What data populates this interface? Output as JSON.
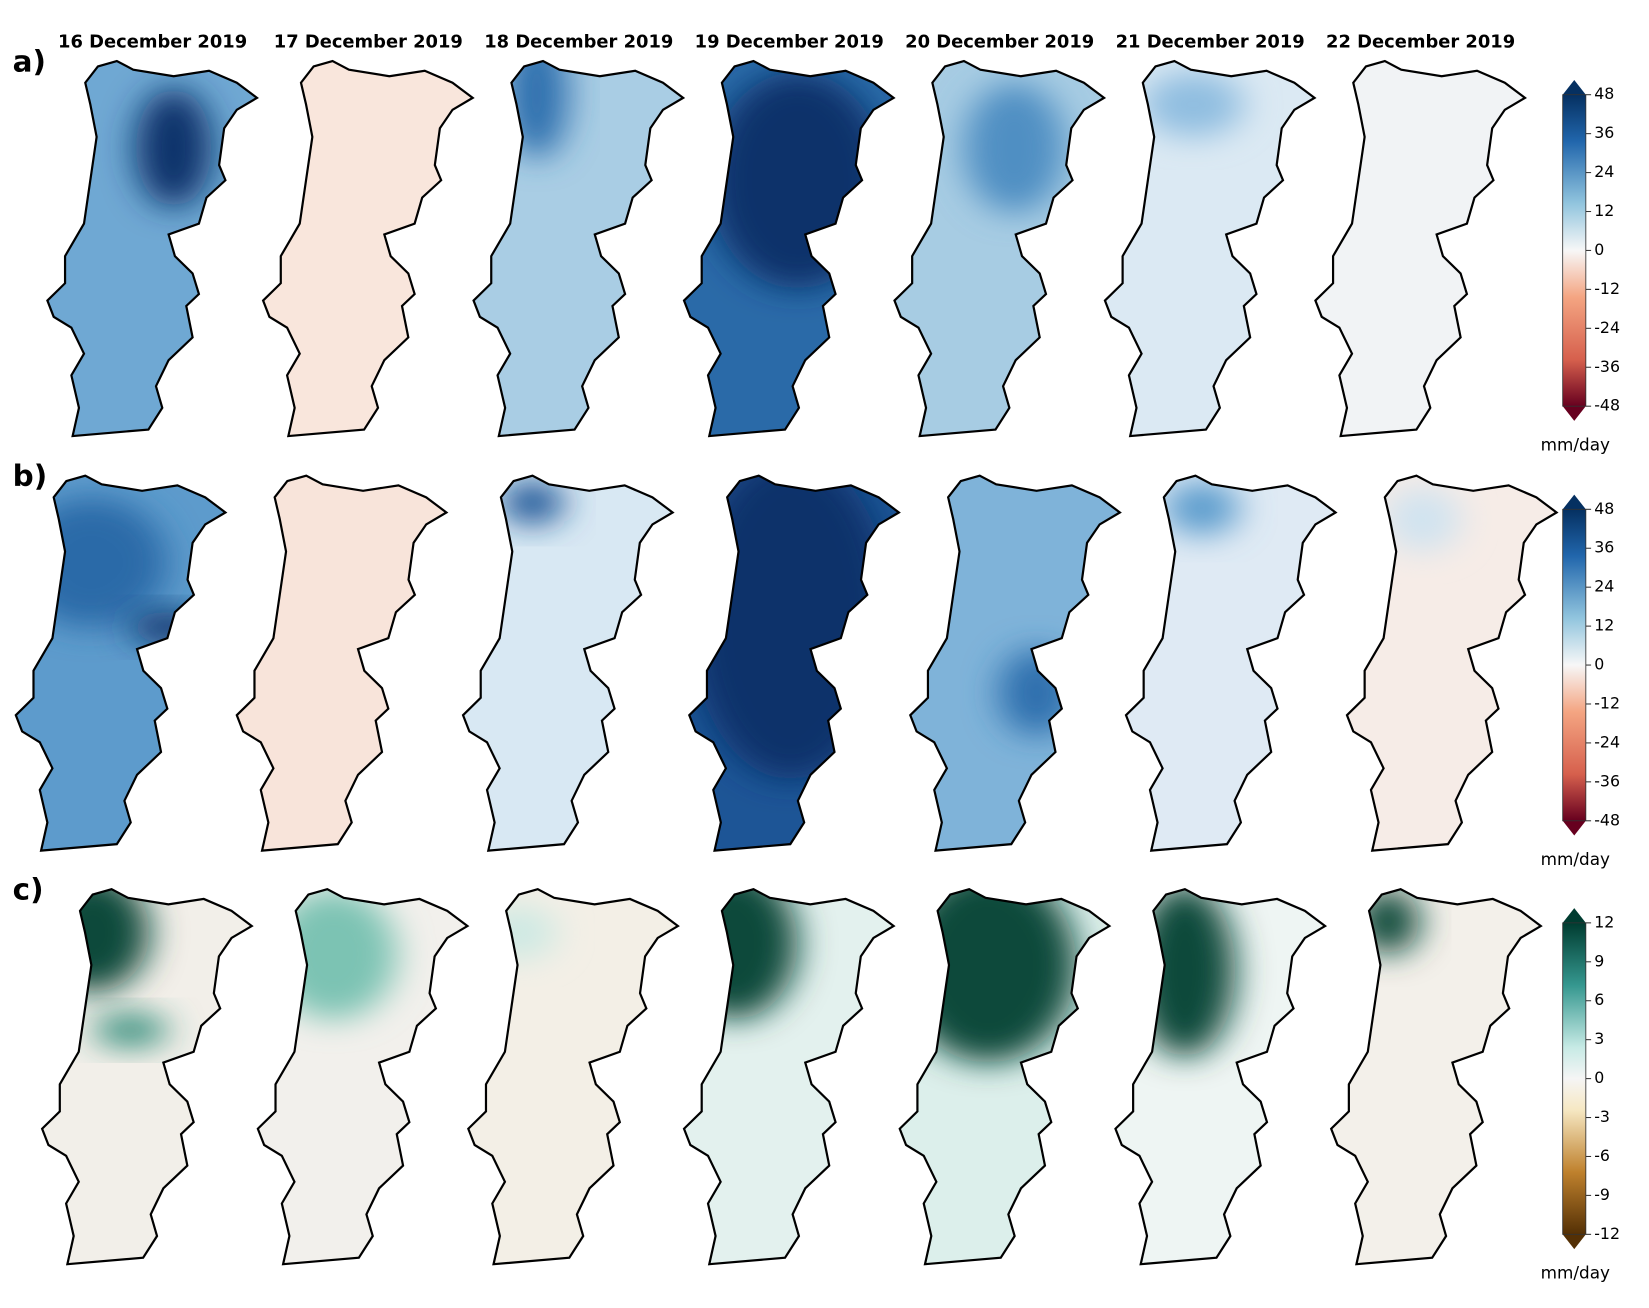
{
  "columns": [
    "16 December 2019",
    "17 December 2019",
    "18 December 2019",
    "19 December 2019",
    "20 December 2019",
    "21 December 2019",
    "22 December 2019"
  ],
  "rows": [
    {
      "label": "a)",
      "colorbar": {
        "range": [
          -48,
          48
        ],
        "ticks": [
          48,
          36,
          24,
          12,
          0,
          -12,
          -24,
          -36,
          -48
        ],
        "unit": "mm/day"
      }
    },
    {
      "label": "b)",
      "colorbar": {
        "range": [
          -48,
          48
        ],
        "ticks": [
          48,
          36,
          24,
          12,
          0,
          -12,
          -24,
          -36,
          -48
        ],
        "unit": "mm/day"
      }
    },
    {
      "label": "c)",
      "colorbar": {
        "range": [
          -12,
          12
        ],
        "ticks": [
          12,
          9,
          6,
          3,
          0,
          -3,
          -6,
          -9,
          -12
        ],
        "unit": "mm/day"
      }
    }
  ]
}
